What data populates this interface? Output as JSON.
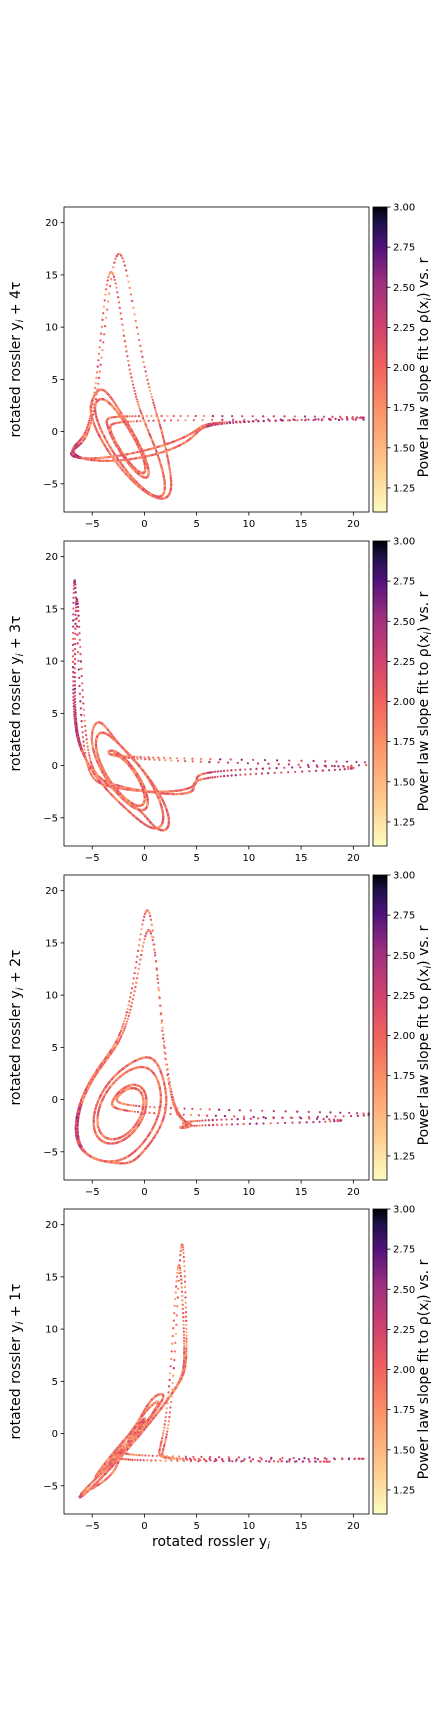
{
  "figure": {
    "xlabel": "rotated rossler y",
    "xlabel_sub": "i",
    "colorbar_label": "Power law slope fit to ρ(x",
    "colorbar_label_sub": "i",
    "colorbar_label_tail": ") vs. r",
    "colormap": "magma_r",
    "colors": {
      "low": "#fcfdbf",
      "mid_low": "#fe9f6d",
      "mid": "#de4968",
      "mid_high": "#8c2981",
      "high_mid": "#3b0f70",
      "high": "#000004"
    }
  },
  "chart_data": [
    {
      "type": "scatter",
      "ylabel_prefix": "rotated rossler y",
      "ylabel_sub": "i",
      "ylabel_suffix": " + 4τ",
      "lag": 4,
      "xlim": [
        -7.7,
        21.5
      ],
      "ylim": [
        -7.7,
        21.5
      ],
      "xticks": [
        -5,
        0,
        5,
        10,
        15,
        20
      ],
      "yticks": [
        -5,
        0,
        5,
        10,
        15,
        20
      ],
      "xtick_labels": [
        "−5",
        "0",
        "5",
        "10",
        "15",
        "20"
      ],
      "ytick_labels": [
        "−5",
        "0",
        "5",
        "10",
        "15",
        "20"
      ],
      "colorbar_range": [
        1.1,
        3.0
      ],
      "colorbar_ticks": [
        1.25,
        1.5,
        1.75,
        2.0,
        2.25,
        2.5,
        2.75,
        3.0
      ],
      "colorbar_tick_labels": [
        "1.25",
        "1.50",
        "1.75",
        "2.00",
        "2.25",
        "2.50",
        "2.75",
        "3.00"
      ],
      "color_field": "power law slope",
      "grid": false
    },
    {
      "type": "scatter",
      "ylabel_prefix": "rotated rossler y",
      "ylabel_sub": "i",
      "ylabel_suffix": " + 3τ",
      "lag": 3,
      "xlim": [
        -7.7,
        21.5
      ],
      "ylim": [
        -7.7,
        21.5
      ],
      "xticks": [
        -5,
        0,
        5,
        10,
        15,
        20
      ],
      "yticks": [
        -5,
        0,
        5,
        10,
        15,
        20
      ],
      "xtick_labels": [
        "−5",
        "0",
        "5",
        "10",
        "15",
        "20"
      ],
      "ytick_labels": [
        "−5",
        "0",
        "5",
        "10",
        "15",
        "20"
      ],
      "colorbar_range": [
        1.1,
        3.0
      ],
      "colorbar_ticks": [
        1.25,
        1.5,
        1.75,
        2.0,
        2.25,
        2.5,
        2.75,
        3.0
      ],
      "colorbar_tick_labels": [
        "1.25",
        "1.50",
        "1.75",
        "2.00",
        "2.25",
        "2.50",
        "2.75",
        "3.00"
      ],
      "color_field": "power law slope",
      "grid": false
    },
    {
      "type": "scatter",
      "ylabel_prefix": "rotated rossler y",
      "ylabel_sub": "i",
      "ylabel_suffix": " + 2τ",
      "lag": 2,
      "xlim": [
        -7.7,
        21.5
      ],
      "ylim": [
        -7.7,
        21.5
      ],
      "xticks": [
        -5,
        0,
        5,
        10,
        15,
        20
      ],
      "yticks": [
        -5,
        0,
        5,
        10,
        15,
        20
      ],
      "xtick_labels": [
        "−5",
        "0",
        "5",
        "10",
        "15",
        "20"
      ],
      "ytick_labels": [
        "−5",
        "0",
        "5",
        "10",
        "15",
        "20"
      ],
      "colorbar_range": [
        1.1,
        3.0
      ],
      "colorbar_ticks": [
        1.25,
        1.5,
        1.75,
        2.0,
        2.25,
        2.5,
        2.75,
        3.0
      ],
      "colorbar_tick_labels": [
        "1.25",
        "1.50",
        "1.75",
        "2.00",
        "2.25",
        "2.50",
        "2.75",
        "3.00"
      ],
      "color_field": "power law slope",
      "grid": false
    },
    {
      "type": "scatter",
      "ylabel_prefix": "rotated rossler y",
      "ylabel_sub": "i",
      "ylabel_suffix": " + 1τ",
      "lag": 1,
      "xlim": [
        -7.7,
        21.5
      ],
      "ylim": [
        -7.7,
        21.5
      ],
      "xticks": [
        -5,
        0,
        5,
        10,
        15,
        20
      ],
      "yticks": [
        -5,
        0,
        5,
        10,
        15,
        20
      ],
      "xtick_labels": [
        "−5",
        "0",
        "5",
        "10",
        "15",
        "20"
      ],
      "ytick_labels": [
        "−5",
        "0",
        "5",
        "10",
        "15",
        "20"
      ],
      "colorbar_range": [
        1.1,
        3.0
      ],
      "colorbar_ticks": [
        1.25,
        1.5,
        1.75,
        2.0,
        2.25,
        2.5,
        2.75,
        3.0
      ],
      "colorbar_tick_labels": [
        "1.25",
        "1.50",
        "1.75",
        "2.00",
        "2.25",
        "2.50",
        "2.75",
        "3.00"
      ],
      "color_field": "power law slope",
      "grid": false
    }
  ]
}
